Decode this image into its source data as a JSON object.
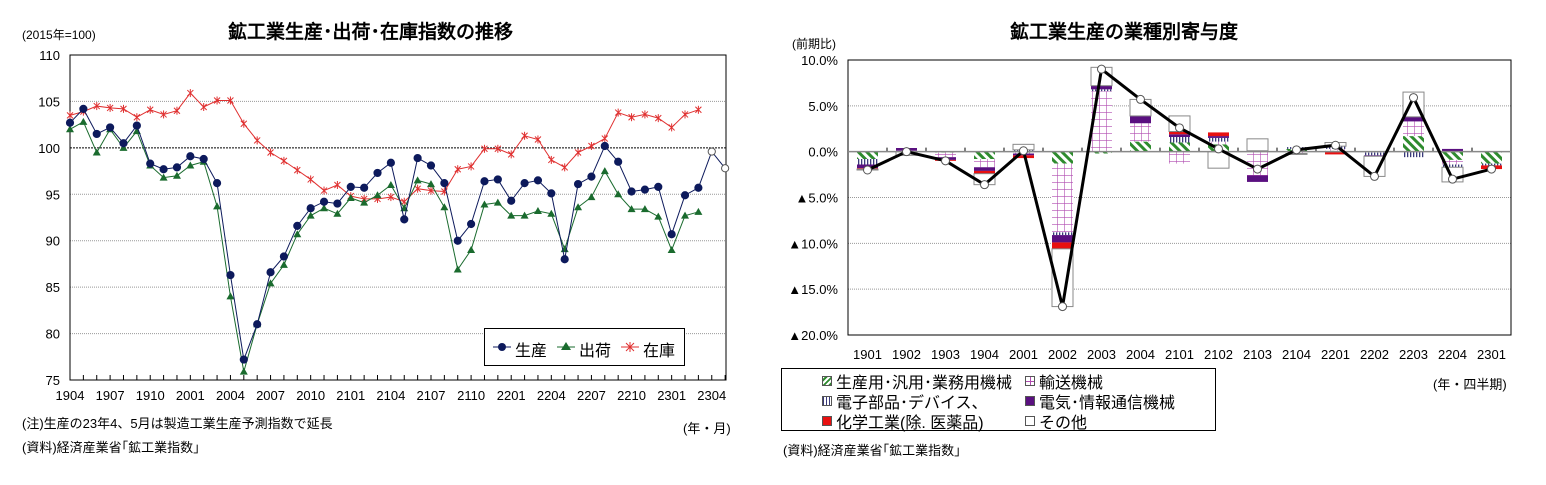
{
  "chart_data": [
    {
      "type": "line",
      "title": "鉱工業生産･出荷･在庫指数の推移",
      "unit_label": "(2015年=100)",
      "xlabel": "(年・月)",
      "ylim": [
        75,
        110
      ],
      "y_ticks": [
        75,
        80,
        85,
        90,
        95,
        100,
        105,
        110
      ],
      "x_tick_labels": [
        "1904",
        "1907",
        "1910",
        "2001",
        "2004",
        "2007",
        "2010",
        "2101",
        "2104",
        "2107",
        "2110",
        "2201",
        "2204",
        "2207",
        "2210",
        "2301",
        "2304"
      ],
      "x_months_start": "1904",
      "x_months_end": "2305",
      "grid": true,
      "legend_position": "bottom-right",
      "series": [
        {
          "name": "生産",
          "color": "#0d1a5c",
          "marker": "circle",
          "values": [
            102.7,
            104.2,
            101.5,
            102.2,
            100.5,
            102.4,
            98.3,
            97.7,
            97.9,
            99.1,
            98.8,
            96.2,
            86.3,
            77.2,
            81.0,
            86.6,
            88.3,
            91.6,
            93.5,
            94.2,
            94.0,
            95.8,
            95.7,
            97.3,
            98.4,
            92.3,
            98.9,
            98.1,
            96.2,
            90.0,
            91.8,
            96.4,
            96.6,
            94.3,
            96.2,
            96.5,
            95.1,
            88.0,
            96.1,
            96.9,
            100.2,
            98.5,
            95.3,
            95.5,
            95.8,
            90.7,
            94.9,
            95.7
          ],
          "forecast": {
            "months": [
              "2304",
              "2305"
            ],
            "values": [
              99.6,
              97.8
            ]
          }
        },
        {
          "name": "出荷",
          "color": "#1a6b2e",
          "marker": "triangle",
          "values": [
            102.0,
            102.8,
            99.5,
            102.0,
            100.0,
            101.8,
            98.1,
            96.8,
            97.0,
            98.1,
            98.5,
            93.7,
            84.0,
            75.9,
            81.0,
            85.4,
            87.4,
            90.7,
            92.7,
            93.5,
            92.9,
            94.6,
            94.1,
            94.9,
            96.0,
            93.5,
            96.5,
            96.1,
            93.6,
            86.9,
            89.0,
            93.9,
            94.1,
            92.7,
            92.7,
            93.2,
            92.9,
            89.1,
            93.6,
            94.7,
            97.5,
            95.0,
            93.4,
            93.4,
            92.6,
            89.0,
            92.7,
            93.1
          ]
        },
        {
          "name": "在庫",
          "color": "#e03030",
          "marker": "asterisk",
          "values": [
            103.5,
            103.9,
            104.5,
            104.3,
            104.2,
            103.3,
            104.1,
            103.6,
            104.0,
            105.9,
            104.4,
            105.1,
            105.1,
            102.6,
            100.8,
            99.5,
            98.6,
            97.6,
            96.6,
            95.4,
            96.0,
            94.8,
            94.5,
            94.5,
            94.7,
            94.2,
            95.6,
            95.4,
            95.3,
            97.7,
            98.0,
            99.9,
            99.9,
            99.3,
            101.3,
            100.9,
            98.7,
            97.9,
            99.5,
            100.2,
            101.0,
            103.8,
            103.3,
            103.6,
            103.2,
            102.2,
            103.6,
            104.1
          ]
        }
      ],
      "notes": [
        "(注)生産の23年4、5月は製造工業生産予測指数で延長",
        "(資料)経済産業省｢鉱工業指数｣"
      ]
    },
    {
      "type": "bar",
      "stacked": true,
      "title": "鉱工業生産の業種別寄与度",
      "unit_label": "(前期比)",
      "xlabel": "(年・四半期)",
      "ylim": [
        -20,
        10
      ],
      "y_ticks": [
        10,
        5,
        0,
        -5,
        -10,
        -15,
        -20
      ],
      "y_tick_labels": [
        "10.0%",
        "5.0%",
        "0.0%",
        "▲5.0%",
        "▲10.0%",
        "▲15.0%",
        "▲20.0%"
      ],
      "categories": [
        "1901",
        "1902",
        "1903",
        "1904",
        "2001",
        "2002",
        "2003",
        "2004",
        "2101",
        "2102",
        "2103",
        "2104",
        "2201",
        "2202",
        "2203",
        "2204",
        "2301"
      ],
      "grid": true,
      "legend_position": "bottom",
      "series": [
        {
          "name": "生産用･汎用･業務用機械",
          "pattern": "diagonal-green",
          "color": "#2e8b2e",
          "values": [
            -0.8,
            0,
            -0.1,
            -0.8,
            -0.1,
            -1.3,
            -0.2,
            1.1,
            1.0,
            0.8,
            0,
            0.3,
            0.1,
            0,
            1.7,
            -0.9,
            -1.3
          ]
        },
        {
          "name": "輸送機械",
          "pattern": "grid-pink",
          "color": "#b04cb0",
          "values": [
            0,
            0.1,
            -0.5,
            -0.9,
            -0.1,
            -7.5,
            6.6,
            2.0,
            -1.3,
            0.3,
            -2.6,
            -0.2,
            0.2,
            -0.1,
            1.6,
            -0.5,
            0
          ]
        },
        {
          "name": "電子部品･デバイス、",
          "pattern": "vertical-navy",
          "color": "#3a3a7a",
          "values": [
            -0.6,
            0,
            0,
            0,
            0.2,
            -0.3,
            0.2,
            0,
            0.6,
            0.4,
            0.1,
            0.2,
            0.3,
            -0.3,
            -0.6,
            -0.3,
            -0.2
          ]
        },
        {
          "name": "電気･情報通信機械",
          "pattern": "solid",
          "color": "#5a1080",
          "values": [
            -0.4,
            0.3,
            -0.3,
            -0.4,
            -0.2,
            -0.8,
            0.4,
            0.8,
            0.3,
            0.2,
            -0.7,
            0,
            0,
            -0.1,
            0.5,
            0.3,
            0
          ]
        },
        {
          "name": "化学工業(除. 医薬品)",
          "pattern": "solid",
          "color": "#e81010",
          "values": [
            -0.1,
            0,
            -0.1,
            -0.3,
            -0.3,
            -0.7,
            0,
            0,
            0.3,
            0.4,
            0,
            0,
            -0.3,
            0,
            0,
            0,
            -0.4
          ]
        },
        {
          "name": "その他",
          "pattern": "solid",
          "color": "#ffffff",
          "values": [
            -0.1,
            -0.4,
            0,
            -1.2,
            0.6,
            -6.3,
            2.0,
            1.8,
            1.7,
            -1.8,
            1.3,
            -0.1,
            0.4,
            -2.2,
            2.7,
            -1.6,
            0
          ]
        }
      ],
      "total": {
        "color": "#000000",
        "values": [
          -2.0,
          0.0,
          -1.0,
          -3.6,
          0.1,
          -16.9,
          9.0,
          5.7,
          2.6,
          0.3,
          -1.9,
          0.2,
          0.7,
          -2.7,
          5.9,
          -3.0,
          -1.9
        ]
      },
      "notes": [
        "(資料)経済産業省｢鉱工業指数｣"
      ]
    }
  ]
}
